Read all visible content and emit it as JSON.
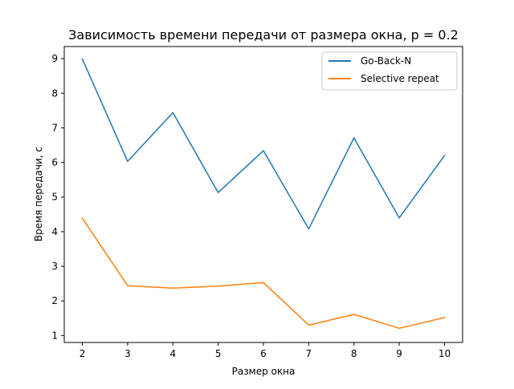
{
  "chart_data": {
    "type": "line",
    "title": "Зависимость времени передачи от размера окна, p = 0.2",
    "xlabel": "Размер окна",
    "ylabel": "Время передачи, с",
    "x": [
      2,
      3,
      4,
      5,
      6,
      7,
      8,
      9,
      10
    ],
    "xlim": [
      1.6,
      10.4
    ],
    "ylim": [
      0.8,
      9.35
    ],
    "xticks": [
      2,
      3,
      4,
      5,
      6,
      7,
      8,
      9,
      10
    ],
    "yticks": [
      1,
      2,
      3,
      4,
      5,
      6,
      7,
      8,
      9
    ],
    "grid": false,
    "legend_position": "top-right",
    "series": [
      {
        "name": "Go-Back-N",
        "color": "#1f77b4",
        "values": [
          8.99,
          6.03,
          7.44,
          5.13,
          6.34,
          4.08,
          6.71,
          4.4,
          6.2
        ]
      },
      {
        "name": "Selective repeat",
        "color": "#ff7f0e",
        "values": [
          4.39,
          2.44,
          2.37,
          2.43,
          2.53,
          1.3,
          1.61,
          1.21,
          1.52
        ]
      }
    ]
  }
}
